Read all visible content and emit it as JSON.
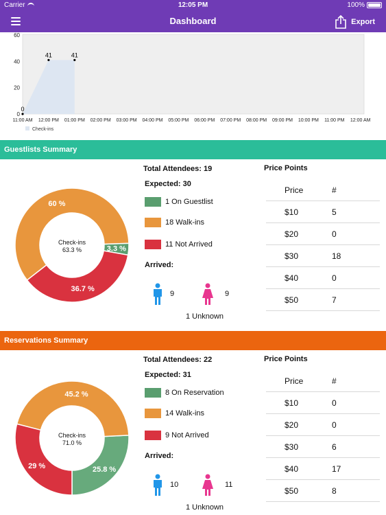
{
  "status_bar": {
    "carrier": "Carrier",
    "time": "12:05 PM",
    "battery": "100%"
  },
  "nav": {
    "title": "Dashboard",
    "export_label": "Export",
    "menu_icon": "hamburger-icon",
    "export_icon": "share-icon"
  },
  "chart_data": {
    "type": "area",
    "x_ticks": [
      "11:00 AM",
      "12:00 PM",
      "01:00 PM",
      "02:00 PM",
      "03:00 PM",
      "04:00 PM",
      "05:00 PM",
      "06:00 PM",
      "07:00 PM",
      "08:00 PM",
      "09:00 PM",
      "10:00 PM",
      "11:00 PM",
      "12:00 AM"
    ],
    "y_ticks": [
      0,
      20,
      40,
      60
    ],
    "ylim": [
      0,
      60
    ],
    "series": [
      {
        "name": "Check-ins",
        "color": "#dde6f2",
        "points": [
          [
            "11:00 AM",
            0
          ],
          [
            "12:00 PM",
            41
          ],
          [
            "01:00 PM",
            41
          ]
        ],
        "point_labels": [
          "0",
          "41",
          "41"
        ]
      }
    ],
    "legend": "bottom-left",
    "plot_background": "#efefef"
  },
  "guestlists": {
    "header": "Guestlists Summary",
    "total_attendees": "Total Attendees: 19",
    "expected": "Expected: 30",
    "legend": [
      {
        "label": "1 On Guestlist",
        "color": "#5a9e6f"
      },
      {
        "label": "18 Walk-ins",
        "color": "#e8963d"
      },
      {
        "label": "11 Not Arrived",
        "color": "#d9323f"
      }
    ],
    "arrived_label": "Arrived:",
    "male_count": "9",
    "female_count": "9",
    "unknown": "1 Unknown",
    "donut": {
      "center_title": "Check-ins",
      "center_value": "63.3 %",
      "slices": [
        {
          "label": "3.3 %",
          "value": 3.3,
          "color": "#5a9e6f"
        },
        {
          "label": "60 %",
          "value": 60,
          "color": "#e8963d"
        },
        {
          "label": "36.7 %",
          "value": 36.7,
          "color": "#d9323f"
        }
      ]
    },
    "price_points": {
      "title": "Price Points",
      "headers": [
        "Price",
        "#"
      ],
      "rows": [
        [
          "$10",
          "5"
        ],
        [
          "$20",
          "0"
        ],
        [
          "$30",
          "18"
        ],
        [
          "$40",
          "0"
        ],
        [
          "$50",
          "7"
        ]
      ]
    }
  },
  "reservations": {
    "header": "Reservations Summary",
    "total_attendees": "Total Attendees: 22",
    "expected": "Expected: 31",
    "legend": [
      {
        "label": "8 On Reservation",
        "color": "#5a9e6f"
      },
      {
        "label": "14 Walk-ins",
        "color": "#e8963d"
      },
      {
        "label": "9 Not Arrived",
        "color": "#d9323f"
      }
    ],
    "arrived_label": "Arrived:",
    "male_count": "10",
    "female_count": "11",
    "unknown": "1 Unknown",
    "donut": {
      "center_title": "Check-ins",
      "center_value": "71.0 %",
      "slices": [
        {
          "label": "25.8 %",
          "value": 25.8,
          "color": "#67aa7c"
        },
        {
          "label": "45.2 %",
          "value": 45.2,
          "color": "#e8963d"
        },
        {
          "label": "29 %",
          "value": 29,
          "color": "#d9323f"
        }
      ]
    },
    "price_points": {
      "title": "Price Points",
      "headers": [
        "Price",
        "#"
      ],
      "rows": [
        [
          "$10",
          "0"
        ],
        [
          "$20",
          "0"
        ],
        [
          "$30",
          "6"
        ],
        [
          "$40",
          "17"
        ],
        [
          "$50",
          "8"
        ]
      ]
    }
  },
  "colors": {
    "nav": "#6f3bb5",
    "guest_header": "#2bbd99",
    "reserve_header": "#eb650f",
    "male": "#2196e8",
    "female": "#e8368f"
  }
}
